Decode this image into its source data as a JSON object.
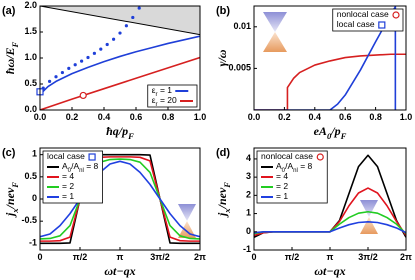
{
  "chart_data": [
    {
      "type": "line",
      "panel_label": "(a)",
      "xlabel": "ħq/p_F",
      "ylabel": "ħω/E_F",
      "xlim": [
        0,
        1
      ],
      "ylim": [
        0,
        2
      ],
      "xticks": [
        {
          "value": 0,
          "label": "0.0"
        },
        0.2,
        0.4,
        0.6,
        0.8,
        {
          "value": 1,
          "label": "1.0"
        }
      ],
      "yticks": [
        {
          "value": 0,
          "label": "0.0"
        },
        0.5,
        {
          "value": 1,
          "label": "1.0"
        },
        1.5,
        {
          "value": 2,
          "label": "2.0"
        }
      ],
      "boundary": {
        "x": [
          0,
          1
        ],
        "values": [
          2,
          1.45
        ],
        "color": "#000000",
        "fill": "#d9d9d9"
      },
      "series": [
        {
          "color": "#1f3fd8",
          "style": "dots",
          "x": [
            0.02,
            0.06,
            0.1,
            0.14,
            0.18,
            0.22,
            0.26,
            0.3,
            0.34,
            0.38,
            0.42,
            0.46,
            0.5,
            0.54,
            0.58,
            0.62
          ],
          "values": [
            0.42,
            0.55,
            0.64,
            0.72,
            0.8,
            0.87,
            0.94,
            1.01,
            1.09,
            1.17,
            1.26,
            1.36,
            1.48,
            1.62,
            1.78,
            1.96
          ]
        },
        {
          "name": "ε_r = 1",
          "color": "#1f3fd8",
          "x": [
            0,
            0.05,
            0.1,
            0.2,
            0.3,
            0.4,
            0.5,
            0.6,
            0.7,
            0.8,
            0.9,
            1
          ],
          "values": [
            0.3,
            0.45,
            0.55,
            0.7,
            0.82,
            0.93,
            1.03,
            1.12,
            1.2,
            1.28,
            1.35,
            1.42
          ]
        },
        {
          "name": "ε_r = 20",
          "color": "#d62020",
          "x": [
            0,
            0.2,
            0.4,
            0.6,
            0.8,
            1
          ],
          "values": [
            0,
            0.21,
            0.41,
            0.61,
            0.81,
            1.01
          ]
        }
      ],
      "markers": [
        {
          "shape": "square",
          "color": "#1f3fd8",
          "x": 0,
          "y": 0.35
        },
        {
          "shape": "circle",
          "color": "#d62020",
          "x": 0.27,
          "y": 0.28
        }
      ],
      "legend": "lower right"
    },
    {
      "type": "line",
      "panel_label": "(b)",
      "xlabel": "eA_0/p_F",
      "ylabel": "γ/ω",
      "xlim": [
        0,
        1
      ],
      "ylim": [
        0,
        0.0125
      ],
      "xticks": [
        {
          "value": 0,
          "label": "0.0"
        },
        0.2,
        0.4,
        0.6,
        0.8,
        {
          "value": 1,
          "label": "1.0"
        }
      ],
      "yticks": [
        0.005,
        0.01
      ],
      "series": [
        {
          "name": "nonlocal case",
          "color": "#d62020",
          "marker": "circle",
          "x": [
            0,
            0.22,
            0.22,
            0.26,
            0.3,
            0.4,
            0.5,
            0.6,
            0.7,
            0.8,
            0.9,
            1
          ],
          "values": [
            0,
            0,
            0.0027,
            0.0038,
            0.0045,
            0.0054,
            0.0059,
            0.0063,
            0.0065,
            0.0066,
            0.0067,
            0.0067
          ]
        },
        {
          "name": "local case",
          "color": "#1f3fd8",
          "marker": "square",
          "x": [
            0,
            0.5,
            0.55,
            0.6,
            0.7,
            0.8,
            0.9,
            0.93,
            0.93
          ],
          "values": [
            0,
            0,
            0.0007,
            0.0018,
            0.0048,
            0.0082,
            0.0115,
            0.0124,
            0
          ]
        }
      ],
      "legend": "upper right"
    },
    {
      "type": "line",
      "panel_label": "(c)",
      "xlabel": "ωt−qx",
      "ylabel": "j_x/nev_F",
      "xlim": [
        0,
        6.2832
      ],
      "ylim": [
        -1.15,
        1.15
      ],
      "xticks": [
        0,
        {
          "value": 1.5708,
          "label": "π/2"
        },
        {
          "value": 3.1416,
          "label": "π"
        },
        {
          "value": 4.7124,
          "label": "3π/2"
        },
        {
          "value": 6.2832,
          "label": "2π"
        }
      ],
      "yticks": [
        -1,
        -0.5,
        0,
        0.5,
        1
      ],
      "legend_title": "local case",
      "legend_marker": {
        "shape": "square",
        "color": "#1f3fd8"
      },
      "x": [
        0,
        0.3927,
        0.7854,
        1.1781,
        1.5708,
        1.9635,
        2.3562,
        2.7489,
        3.1416,
        3.5343,
        3.927,
        4.3197,
        4.7124,
        5.1051,
        5.4978,
        5.8905,
        6.2832
      ],
      "series": [
        {
          "name": "A_0/A_nl = 8",
          "color": "#000000",
          "values": [
            -1,
            -1,
            -1,
            -0.99,
            0,
            0.99,
            1,
            1,
            1,
            1,
            1,
            0.99,
            0,
            -0.99,
            -1,
            -1,
            -1
          ]
        },
        {
          "name": "= 4",
          "color": "#e0141e",
          "values": [
            -0.95,
            -0.95,
            -0.94,
            -0.86,
            0,
            0.86,
            0.94,
            0.95,
            0.95,
            0.95,
            0.94,
            0.86,
            0,
            -0.86,
            -0.94,
            -0.95,
            -0.95
          ]
        },
        {
          "name": "= 2",
          "color": "#22cc22",
          "values": [
            -0.9,
            -0.89,
            -0.83,
            -0.6,
            0,
            0.6,
            0.83,
            0.89,
            0.9,
            0.89,
            0.83,
            0.6,
            0,
            -0.6,
            -0.83,
            -0.89,
            -0.9
          ]
        },
        {
          "name": "= 1",
          "color": "#2040e0",
          "values": [
            -0.85,
            -0.79,
            -0.6,
            -0.33,
            0,
            0.33,
            0.6,
            0.79,
            0.85,
            0.79,
            0.6,
            0.33,
            0,
            -0.33,
            -0.6,
            -0.79,
            -0.85
          ]
        }
      ],
      "legend": "upper left"
    },
    {
      "type": "line",
      "panel_label": "(d)",
      "xlabel": "ωt−qx",
      "ylabel": "j_x/nev_F",
      "xlim": [
        0,
        6.2832
      ],
      "ylim": [
        -1,
        4.6
      ],
      "xticks": [
        0,
        {
          "value": 1.5708,
          "label": "π/2"
        },
        {
          "value": 3.1416,
          "label": "π"
        },
        {
          "value": 4.7124,
          "label": "3π/2"
        },
        {
          "value": 6.2832,
          "label": "2π"
        }
      ],
      "yticks": [
        -1,
        0,
        1,
        2,
        3,
        4
      ],
      "legend_title": "nonlocal case",
      "legend_marker": {
        "shape": "circle",
        "color": "#d62020"
      },
      "x": [
        0,
        0.3927,
        0.7854,
        1.1781,
        1.5708,
        1.9635,
        2.3562,
        2.7489,
        3.1416,
        3.5343,
        3.927,
        4.3197,
        4.7124,
        5.1051,
        5.4978,
        5.8905,
        6.2832
      ],
      "series": [
        {
          "name": "A_0/A_nl = 8",
          "color": "#000000",
          "values": [
            -0.3,
            -0.05,
            0,
            0,
            0,
            0,
            0,
            0,
            0,
            0.62,
            2.1,
            3.58,
            4.2,
            3.58,
            2.1,
            0.62,
            -0.3
          ]
        },
        {
          "name": "= 4",
          "color": "#e0141e",
          "values": [
            -0.2,
            -0.05,
            0,
            0,
            0,
            0,
            0,
            0,
            0,
            0.57,
            1.43,
            2.13,
            2.4,
            2.13,
            1.43,
            0.57,
            -0.2
          ]
        },
        {
          "name": "= 2",
          "color": "#22cc22",
          "values": [
            -0.1,
            0,
            0,
            0,
            0,
            0,
            0,
            0,
            0,
            0.42,
            0.78,
            1.02,
            1.1,
            1.02,
            0.78,
            0.42,
            -0.1
          ]
        },
        {
          "name": "= 1",
          "color": "#2040e0",
          "values": [
            -0.05,
            0,
            0,
            0,
            0,
            0,
            0,
            0,
            0,
            0.21,
            0.39,
            0.51,
            0.55,
            0.51,
            0.39,
            0.21,
            -0.05
          ]
        }
      ],
      "legend": "upper left"
    }
  ]
}
